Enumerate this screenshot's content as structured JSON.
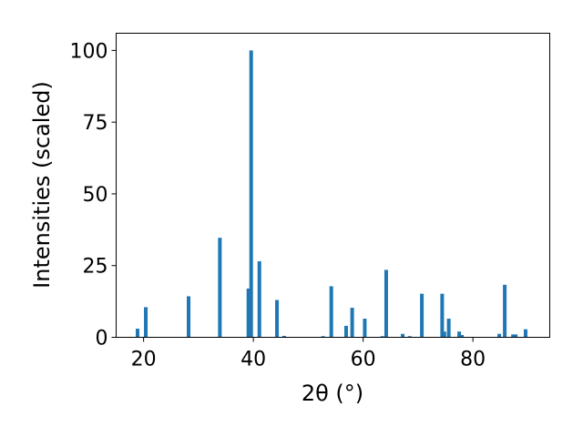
{
  "chart_data": {
    "type": "bar",
    "xlabel": "2θ (°)",
    "ylabel": "Intensities (scaled)",
    "xlim": [
      15,
      94
    ],
    "ylim": [
      0,
      106
    ],
    "x_ticks": [
      20,
      40,
      60,
      80
    ],
    "y_ticks": [
      0,
      25,
      50,
      75,
      100
    ],
    "bar_color": "#1f77b4",
    "grid": false,
    "series": [
      {
        "x": [
          18.9,
          20.4,
          28.2,
          33.9,
          39.1,
          39.6,
          41.1,
          44.3,
          45.6,
          52.7,
          54.2,
          56.9,
          58.0,
          60.3,
          63.5,
          64.2,
          67.2,
          68.5,
          70.7,
          74.4,
          74.8,
          75.6,
          77.5,
          78.0,
          84.8,
          85.8,
          87.3,
          87.8,
          89.6
        ],
        "values": [
          3.0,
          10.5,
          14.3,
          34.7,
          17.0,
          100.0,
          26.5,
          13.0,
          0.5,
          0.4,
          17.8,
          4.0,
          10.3,
          6.5,
          0.4,
          23.5,
          1.2,
          0.4,
          15.2,
          15.2,
          2.0,
          6.5,
          2.0,
          0.8,
          1.2,
          18.3,
          1.0,
          1.0,
          2.8
        ]
      }
    ]
  }
}
